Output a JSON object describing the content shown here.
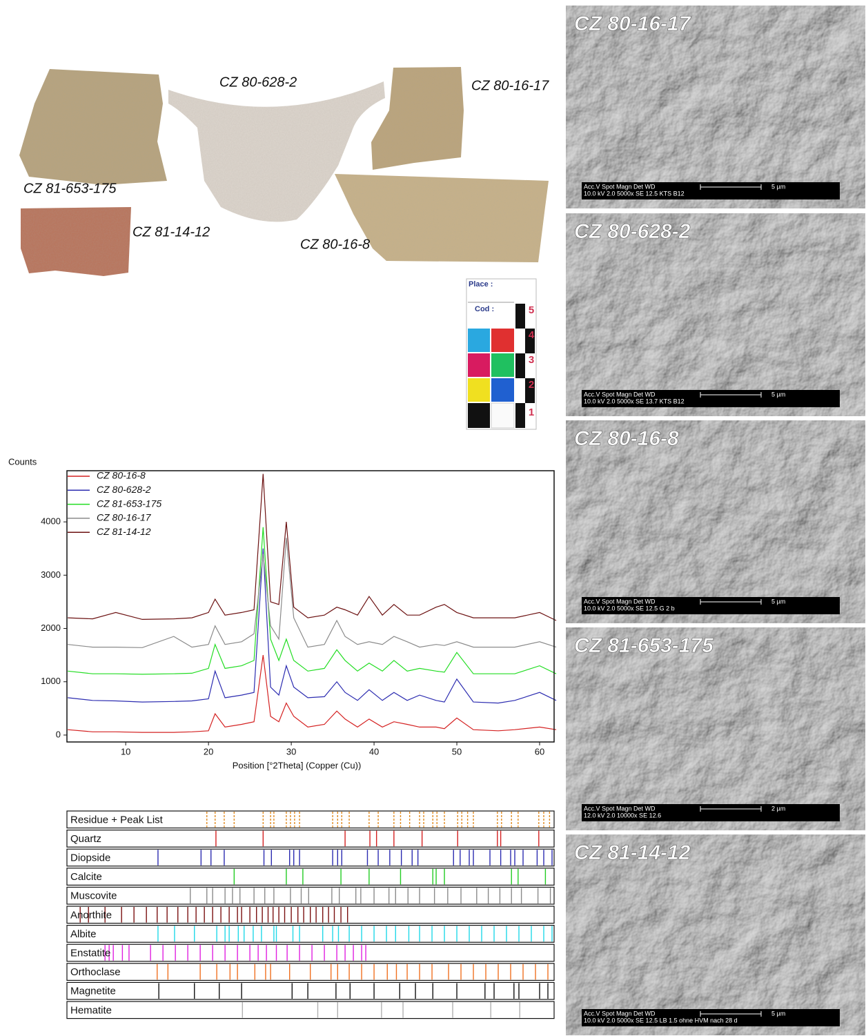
{
  "photos": {
    "labels": [
      "CZ 80-628-2",
      "CZ 80-16-17",
      "CZ 81-653-175",
      "CZ 81-14-12",
      "CZ 80-16-8"
    ]
  },
  "color_card": {
    "place": "Place :",
    "code": "Cod :",
    "scale": [
      "5",
      "4",
      "3",
      "2",
      "1"
    ]
  },
  "chart_data": [
    {
      "type": "line",
      "y_label": "Counts",
      "x_label": "Position [°2Theta] (Copper (Cu))",
      "x": [
        3,
        6,
        8.8,
        12,
        15.8,
        18,
        20,
        20.8,
        22,
        24,
        25.5,
        26.6,
        27.5,
        28.5,
        29.4,
        30.3,
        32,
        34,
        35.5,
        36.5,
        38,
        39.4,
        41,
        42.4,
        44,
        45.5,
        47.5,
        48.5,
        50,
        52,
        55,
        57,
        60,
        62
      ],
      "xlim": [
        2.9,
        61.75
      ],
      "xticks": [
        10,
        20,
        30,
        40,
        50,
        60
      ],
      "ylim": [
        -130,
        4960
      ],
      "yticks": [
        0,
        1000,
        2000,
        3000,
        4000
      ],
      "legend": "upper left",
      "series": [
        {
          "name": "CZ 80-16-8",
          "color": "#d42020",
          "values": [
            100,
            60,
            60,
            50,
            50,
            60,
            80,
            400,
            150,
            200,
            250,
            1500,
            350,
            250,
            600,
            350,
            150,
            200,
            450,
            300,
            150,
            300,
            150,
            250,
            200,
            150,
            150,
            120,
            320,
            100,
            80,
            100,
            150,
            100
          ]
        },
        {
          "name": "CZ 80-628-2",
          "color": "#2b2bb0",
          "values": [
            700,
            650,
            640,
            620,
            630,
            640,
            680,
            1200,
            700,
            750,
            800,
            3500,
            900,
            750,
            1300,
            900,
            700,
            720,
            1000,
            800,
            650,
            850,
            650,
            800,
            650,
            750,
            650,
            620,
            1050,
            620,
            600,
            650,
            800,
            650
          ]
        },
        {
          "name": "CZ 81-653-175",
          "color": "#22dd22",
          "values": [
            1200,
            1150,
            1150,
            1140,
            1150,
            1160,
            1250,
            1700,
            1250,
            1300,
            1400,
            3900,
            1800,
            1400,
            1800,
            1400,
            1200,
            1250,
            1600,
            1400,
            1200,
            1350,
            1200,
            1400,
            1200,
            1250,
            1200,
            1180,
            1550,
            1150,
            1150,
            1150,
            1300,
            1150
          ]
        },
        {
          "name": "CZ 80-16-17",
          "color": "#8a8a8a",
          "values": [
            1700,
            1650,
            1650,
            1640,
            1850,
            1650,
            1700,
            2050,
            1700,
            1750,
            1900,
            3400,
            2050,
            1800,
            3700,
            2200,
            1650,
            1700,
            2150,
            1850,
            1700,
            1750,
            1700,
            1850,
            1750,
            1650,
            1700,
            1680,
            1750,
            1650,
            1650,
            1650,
            1750,
            1650
          ]
        },
        {
          "name": "CZ 81-14-12",
          "color": "#6b1010",
          "values": [
            2200,
            2180,
            2300,
            2170,
            2180,
            2200,
            2300,
            2550,
            2250,
            2300,
            2350,
            4900,
            2500,
            2450,
            4000,
            2400,
            2200,
            2250,
            2400,
            2350,
            2250,
            2600,
            2250,
            2450,
            2250,
            2250,
            2400,
            2450,
            2300,
            2200,
            2200,
            2200,
            2300,
            2150
          ]
        }
      ]
    },
    {
      "type": "stick",
      "xlim": [
        2.9,
        61.75
      ],
      "series": [
        {
          "name": "Residue + Peak List",
          "color": "#e08a20",
          "values": [
            19.8,
            20.8,
            21.9,
            23.1,
            26.6,
            27.5,
            27.9,
            29.4,
            29.9,
            30.4,
            31.0,
            35.0,
            35.6,
            36.1,
            37.0,
            39.4,
            40.5,
            42.4,
            43.2,
            44.3,
            45.5,
            46.0,
            47.1,
            47.6,
            48.5,
            50.1,
            50.6,
            51.3,
            52.0,
            54.9,
            55.4,
            56.6,
            57.4,
            59.9,
            60.5,
            61.2
          ]
        },
        {
          "name": "Quartz",
          "color": "#d42020",
          "values": [
            20.9,
            26.6,
            36.5,
            39.5,
            40.3,
            42.4,
            45.8,
            50.1,
            54.9,
            55.3,
            59.9
          ]
        },
        {
          "name": "Diopside",
          "color": "#2b2bb0",
          "values": [
            13.9,
            19.1,
            20.3,
            21.9,
            26.7,
            27.6,
            29.8,
            30.3,
            31.0,
            35.0,
            35.6,
            36.1,
            39.2,
            40.5,
            41.9,
            43.3,
            44.6,
            45.3,
            49.6,
            50.4,
            51.5,
            52.0,
            54.0,
            55.3,
            56.5,
            57.0,
            58.0,
            59.7,
            60.5,
            61.5
          ]
        },
        {
          "name": "Calcite",
          "color": "#22cc22",
          "values": [
            23.1,
            29.4,
            31.4,
            36.0,
            39.4,
            43.2,
            47.1,
            47.5,
            48.5,
            56.6,
            57.4,
            60.7
          ]
        },
        {
          "name": "Muscovite",
          "color": "#8a8a8a",
          "values": [
            17.8,
            19.8,
            20.5,
            22.0,
            22.9,
            23.8,
            25.5,
            26.8,
            27.9,
            29.9,
            31.2,
            32.1,
            34.9,
            35.8,
            37.8,
            38.4,
            40.0,
            41.8,
            42.6,
            44.1,
            45.5,
            47.3,
            48.9,
            50.5,
            52.4,
            53.8,
            55.2,
            56.6,
            57.8,
            59.8,
            61.3
          ]
        },
        {
          "name": "Anorthite",
          "color": "#7a1010",
          "values": [
            4.5,
            5.5,
            7.5,
            9.5,
            11,
            12.5,
            13.8,
            15,
            16.3,
            17.5,
            18.5,
            19.5,
            20.5,
            21.5,
            22.5,
            23.5,
            24.0,
            25.0,
            25.8,
            26.5,
            27.2,
            27.8,
            28.5,
            29.2,
            30.0,
            30.8,
            31.5,
            32.3,
            33.0,
            33.8,
            34.5,
            35.2,
            36.0,
            36.8
          ]
        },
        {
          "name": "Albite",
          "color": "#20d8e8",
          "values": [
            13.9,
            15.9,
            18.3,
            21.0,
            22.0,
            22.5,
            23.6,
            24.3,
            25.4,
            26.4,
            27.9,
            28.2,
            30.2,
            31.0,
            33.8,
            35.0,
            35.7,
            37.0,
            38.5,
            40.0,
            41.5,
            42.6,
            44.2,
            45.5,
            47.0,
            48.5,
            50.0,
            51.5,
            53.0,
            54.5,
            56.0,
            57.5,
            59.0,
            60.5,
            61.5
          ]
        },
        {
          "name": "Enstatite",
          "color": "#e020e0",
          "values": [
            7.5,
            8.0,
            8.5,
            9.6,
            10.4,
            13.0,
            14.5,
            16.0,
            17.5,
            19.0,
            20.5,
            22.0,
            23.5,
            25.0,
            26.0,
            27.0,
            28.2,
            29.5,
            31.0,
            32.5,
            34.0,
            35.5,
            36.5,
            37.5,
            38.5,
            39.0
          ]
        },
        {
          "name": "Orthoclase",
          "color": "#f07020",
          "values": [
            13.8,
            15.1,
            19.0,
            21.0,
            22.6,
            23.5,
            25.6,
            26.9,
            27.5,
            29.8,
            32.3,
            34.8,
            35.6,
            37.0,
            38.5,
            40.0,
            41.6,
            42.7,
            44.0,
            45.5,
            47.0,
            49.0,
            50.5,
            52.0,
            53.5,
            55.0,
            56.5,
            58.0,
            59.5,
            61.0
          ]
        },
        {
          "name": "Magnetite",
          "color": "#111111",
          "values": [
            14.0,
            18.3,
            21.3,
            24.0,
            30.1,
            32.0,
            35.4,
            37.1,
            40.0,
            43.1,
            45.0,
            47.1,
            50.0,
            53.4,
            54.5,
            56.9,
            57.5,
            60.0,
            61.0
          ]
        },
        {
          "name": "Hematite",
          "color": "#b0b0b0",
          "values": [
            24.1,
            33.2,
            35.6,
            40.9,
            43.5,
            49.5,
            54.1,
            57.6
          ]
        }
      ]
    }
  ],
  "sem_images": [
    {
      "label": "CZ 80-16-17",
      "info_header": "Acc.V  Spot Magn    Det  WD",
      "info_values": "10.0 kV 2.0  5000x   SE   12.5  KTS B12",
      "scale": "5 µm"
    },
    {
      "label": "CZ 80-628-2",
      "info_header": "Acc.V  Spot Magn    Det  WD",
      "info_values": "10.0 kV 2.0  5000x   SE   13.7  KTS B12",
      "scale": "5 µm"
    },
    {
      "label": "CZ 80-16-8",
      "info_header": "Acc.V  Spot Magn    Det  WD",
      "info_values": "10.0 kV 2.0  5000x   SE   12.5  G 2 b",
      "scale": "5 µm"
    },
    {
      "label": "CZ 81-653-175",
      "info_header": "Acc.V  Spot Magn    Det  WD",
      "info_values": "12.0 kV 2.0  10000x  SE   12.6",
      "scale": "2 µm"
    },
    {
      "label": "CZ 81-14-12",
      "info_header": "Acc.V  Spot Magn    Det  WD",
      "info_values": "10.0 kV 2.0  5000x   SE   12.5  LB 1.5 ohne HVM nach 28 d",
      "scale": "5 µm"
    }
  ]
}
